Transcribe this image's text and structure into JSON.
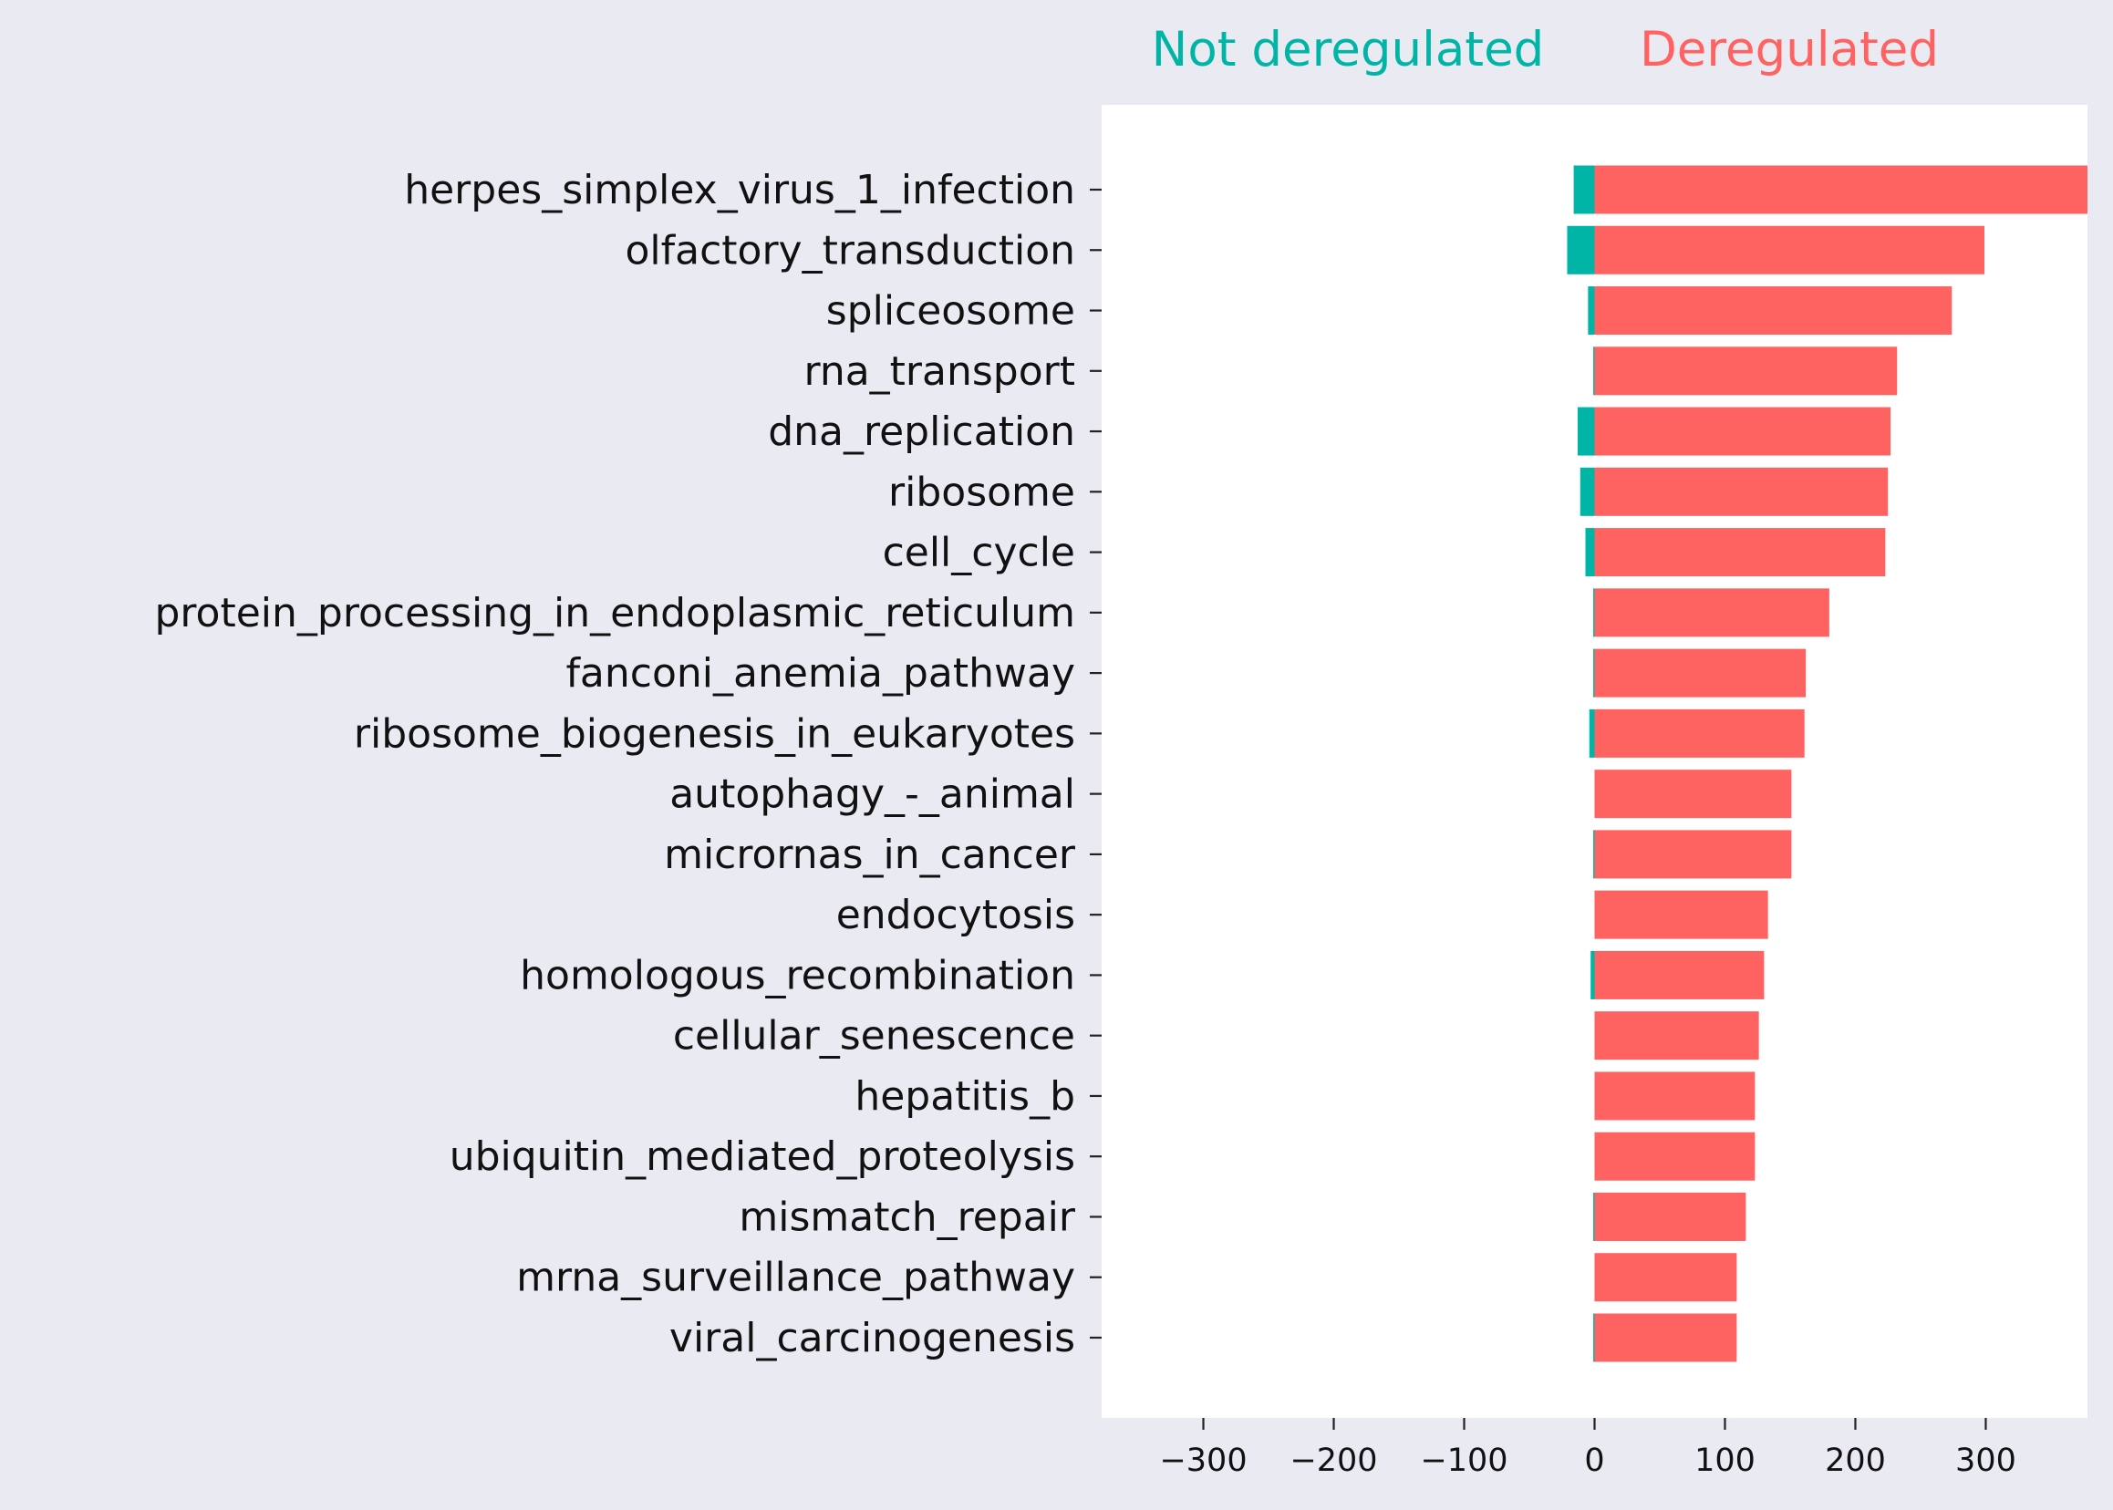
{
  "chart_data": {
    "type": "bar",
    "orientation": "horizontal",
    "annotations": [
      {
        "text": "Not deregulated",
        "color": "#00b5a5"
      },
      {
        "text": "Deregulated",
        "color": "#ff6361"
      }
    ],
    "categories": [
      "herpes_simplex_virus_1_infection",
      "olfactory_transduction",
      "spliceosome",
      "rna_transport",
      "dna_replication",
      "ribosome",
      "cell_cycle",
      "protein_processing_in_endoplasmic_reticulum",
      "fanconi_anemia_pathway",
      "ribosome_biogenesis_in_eukaryotes",
      "autophagy_-_animal",
      "micrornas_in_cancer",
      "endocytosis",
      "homologous_recombination",
      "cellular_senescence",
      "hepatitis_b",
      "ubiquitin_mediated_proteolysis",
      "mismatch_repair",
      "mrna_surveillance_pathway",
      "viral_carcinogenesis"
    ],
    "series": [
      {
        "color": "#00b5a5",
        "values": [
          -16,
          -21,
          -5,
          -1,
          -13,
          -11,
          -7,
          -1,
          -1,
          -4,
          0,
          -1,
          0,
          -3,
          0,
          0,
          0,
          -1,
          0,
          -1
        ]
      },
      {
        "color": "#ff6361",
        "values": [
          378,
          299,
          274,
          232,
          227,
          225,
          223,
          180,
          162,
          161,
          151,
          151,
          133,
          130,
          126,
          123,
          123,
          116,
          109,
          109
        ]
      }
    ],
    "xticks": [
      -300,
      -200,
      -100,
      0,
      100,
      200,
      300
    ],
    "xtick_labels": [
      "−300",
      "−200",
      "−100",
      "0",
      "100",
      "200",
      "300"
    ],
    "xlim": [
      -378,
      378
    ],
    "grid": false,
    "plot_background": "#ffffff",
    "figure_background": "#eaeaf2"
  }
}
